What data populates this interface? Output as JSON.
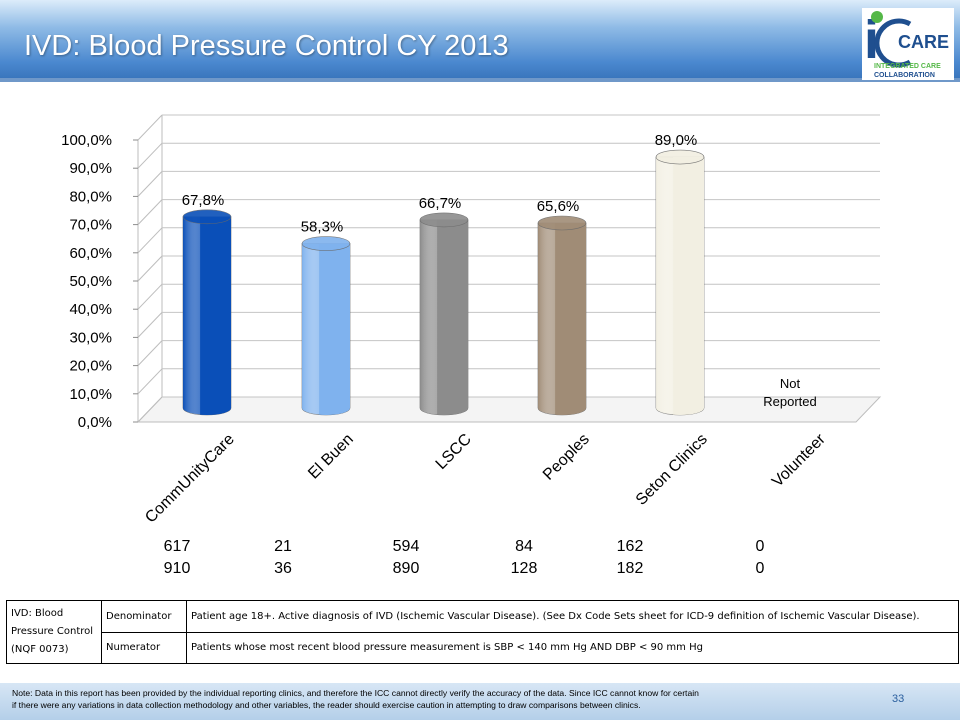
{
  "header": {
    "title": "IVD: Blood Pressure Control CY 2013",
    "logo": {
      "letter": "i",
      "care": "CARE",
      "line1": "INTEGRATED CARE",
      "line2": "COLLABORATION"
    }
  },
  "chart_data": {
    "type": "bar",
    "categories": [
      "CommUnityCare",
      "El Buen",
      "LSCC",
      "Peoples",
      "Seton Clinics",
      "Volunteer"
    ],
    "values": [
      67.8,
      58.3,
      66.7,
      65.6,
      89.0,
      null
    ],
    "value_labels": [
      "67,8%",
      "58,3%",
      "66,7%",
      "65,6%",
      "89,0%",
      ""
    ],
    "colors": [
      "#0a4fb8",
      "#7fb2ee",
      "#8c8c8c",
      "#a08c76",
      "#f2efe2",
      ""
    ],
    "not_reported": "Not Reported",
    "not_reported_lines": [
      "Not",
      "Reported"
    ],
    "ylim": [
      0,
      100
    ],
    "yticks": [
      "0,0%",
      "10,0%",
      "20,0%",
      "30,0%",
      "40,0%",
      "50,0%",
      "60,0%",
      "70,0%",
      "80,0%",
      "90,0%",
      "100,0%"
    ],
    "grid": true,
    "three_d": true,
    "xlabel": "",
    "ylabel": "",
    "numerators": [
      "617",
      "21",
      "594",
      "84",
      "162",
      "0"
    ],
    "denominators": [
      "910",
      "36",
      "890",
      "128",
      "182",
      "0"
    ]
  },
  "definition_table": {
    "measure": [
      "IVD: Blood",
      "Pressure Control",
      "(NQF 0073)"
    ],
    "rows": [
      {
        "label": "Denominator",
        "text": "Patient age 18+. Active diagnosis of IVD (Ischemic Vascular Disease).  (See Dx Code Sets sheet for ICD-9 definition of Ischemic Vascular Disease)."
      },
      {
        "label": "Numerator",
        "text": "Patients whose most recent blood pressure measurement is SBP < 140 mm Hg AND DBP < 90 mm Hg"
      }
    ]
  },
  "footer": {
    "note_line1": "Note: Data in this report has been provided by the individual reporting clinics, and therefore the ICC cannot directly verify the accuracy of the data.  Since ICC cannot know for certain",
    "note_line2": "if there were any variations in data collection methodology and other variables, the reader should exercise caution in attempting to draw comparisons between clinics.",
    "page_number": "33"
  }
}
